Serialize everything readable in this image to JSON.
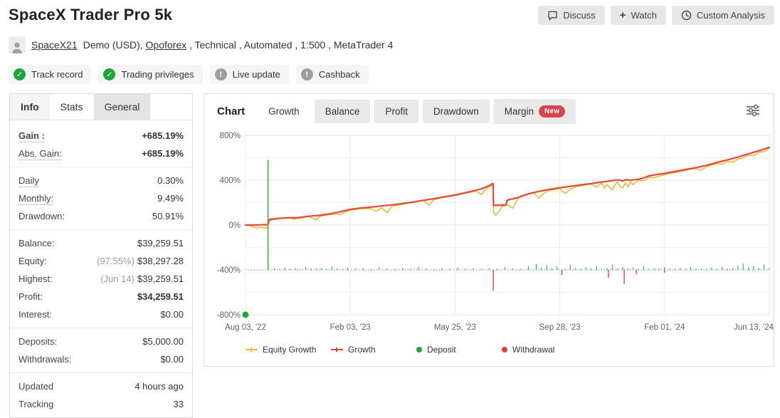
{
  "page": {
    "title": "SpaceX Trader Pro 5k"
  },
  "header_buttons": {
    "discuss": "Discuss",
    "watch": "Watch",
    "custom_analysis": "Custom Analysis"
  },
  "account": {
    "username": "SpaceX21",
    "details_prefix": "Demo (USD), ",
    "broker_link": "Opoforex",
    "details_suffix": " , Technical , Automated , 1:500 , MetaTrader 4"
  },
  "badges": [
    {
      "label": "Track record",
      "status": "verified"
    },
    {
      "label": "Trading privileges",
      "status": "verified"
    },
    {
      "label": "Live update",
      "status": "warning"
    },
    {
      "label": "Cashback",
      "status": "warning"
    }
  ],
  "colors": {
    "verified": "#1fa639",
    "warning": "#9e9e9e",
    "gain_green": "#0fa04c",
    "new_badge_red": "#d9444f"
  },
  "sidebar": {
    "tabs": [
      {
        "label": "Info"
      },
      {
        "label": "Stats"
      },
      {
        "label": "General"
      }
    ],
    "rows": {
      "gain": {
        "label": "Gain :",
        "value": "+685.19%"
      },
      "abs_gain": {
        "label": "Abs. Gain:",
        "value": "+685.19%"
      },
      "daily": {
        "label": "Daily",
        "value": "0.30%"
      },
      "monthly": {
        "label": "Monthly:",
        "value": "9.49%"
      },
      "drawdown": {
        "label": "Drawdown:",
        "value": "50.91%"
      },
      "balance": {
        "label": "Balance:",
        "value": "$39,259.51"
      },
      "equity": {
        "label": "Equity:",
        "note": "(97.55%)",
        "value": "$38,297.28"
      },
      "highest": {
        "label": "Highest:",
        "note": "(Jun 14)",
        "value": "$39,259.51"
      },
      "profit": {
        "label": "Profit:",
        "value": "$34,259.51"
      },
      "interest": {
        "label": "Interest:",
        "value": "$0.00"
      },
      "deposits": {
        "label": "Deposits:",
        "value": "$5,000.00"
      },
      "withdrawals": {
        "label": "Withdrawals:",
        "value": "$0.00"
      },
      "updated": {
        "label": "Updated",
        "value": "4 hours ago"
      },
      "tracking": {
        "label": "Tracking",
        "value": "33"
      }
    }
  },
  "chart_tabs": {
    "section_label": "Chart",
    "tabs": [
      "Growth",
      "Balance",
      "Profit",
      "Drawdown",
      "Margin"
    ],
    "new_badge": "New"
  },
  "chart_data": {
    "type": "line",
    "title": "Growth chart",
    "x_axis": {
      "labels": [
        "Aug 03, '22",
        "Feb 03, '23",
        "May 25, '23",
        "Sep 28, '23",
        "Feb 01, '24",
        "Jun 13, '24"
      ]
    },
    "y_axis": {
      "min": -800,
      "max": 800,
      "tick_step": 400,
      "grid_step": 200,
      "unit": "%"
    },
    "legend": [
      "Equity Growth",
      "Growth",
      "Deposit",
      "Withdrawal"
    ],
    "series": [
      {
        "name": "Equity Growth",
        "color": "#f2b632",
        "width": 1.6,
        "points": [
          [
            0,
            0
          ],
          [
            0.01,
            -8
          ],
          [
            0.02,
            -25
          ],
          [
            0.03,
            -20
          ],
          [
            0.04,
            -28
          ],
          [
            0.046,
            40
          ],
          [
            0.05,
            45
          ],
          [
            0.07,
            60
          ],
          [
            0.085,
            66
          ],
          [
            0.09,
            52
          ],
          [
            0.1,
            58
          ],
          [
            0.11,
            66
          ],
          [
            0.12,
            76
          ],
          [
            0.13,
            58
          ],
          [
            0.135,
            44
          ],
          [
            0.14,
            72
          ],
          [
            0.15,
            86
          ],
          [
            0.17,
            100
          ],
          [
            0.18,
            95
          ],
          [
            0.2,
            132
          ],
          [
            0.22,
            148
          ],
          [
            0.24,
            145
          ],
          [
            0.25,
            124
          ],
          [
            0.26,
            154
          ],
          [
            0.27,
            110
          ],
          [
            0.28,
            168
          ],
          [
            0.3,
            185
          ],
          [
            0.32,
            202
          ],
          [
            0.34,
            218
          ],
          [
            0.35,
            180
          ],
          [
            0.36,
            226
          ],
          [
            0.38,
            248
          ],
          [
            0.4,
            262
          ],
          [
            0.42,
            284
          ],
          [
            0.44,
            302
          ],
          [
            0.45,
            272
          ],
          [
            0.46,
            324
          ],
          [
            0.468,
            348
          ],
          [
            0.472,
            360
          ],
          [
            0.4735,
            120
          ],
          [
            0.478,
            85
          ],
          [
            0.485,
            130
          ],
          [
            0.49,
            165
          ],
          [
            0.5,
            180
          ],
          [
            0.51,
            150
          ],
          [
            0.52,
            238
          ],
          [
            0.54,
            276
          ],
          [
            0.55,
            288
          ],
          [
            0.56,
            240
          ],
          [
            0.57,
            284
          ],
          [
            0.58,
            308
          ],
          [
            0.6,
            324
          ],
          [
            0.61,
            280
          ],
          [
            0.62,
            318
          ],
          [
            0.63,
            340
          ],
          [
            0.65,
            358
          ],
          [
            0.66,
            364
          ],
          [
            0.67,
            338
          ],
          [
            0.68,
            374
          ],
          [
            0.685,
            330
          ],
          [
            0.69,
            360
          ],
          [
            0.7,
            315
          ],
          [
            0.705,
            354
          ],
          [
            0.71,
            384
          ],
          [
            0.715,
            344
          ],
          [
            0.72,
            330
          ],
          [
            0.725,
            374
          ],
          [
            0.73,
            340
          ],
          [
            0.735,
            384
          ],
          [
            0.74,
            360
          ],
          [
            0.75,
            398
          ],
          [
            0.76,
            394
          ],
          [
            0.77,
            428
          ],
          [
            0.78,
            420
          ],
          [
            0.8,
            450
          ],
          [
            0.82,
            468
          ],
          [
            0.83,
            476
          ],
          [
            0.85,
            498
          ],
          [
            0.86,
            504
          ],
          [
            0.87,
            488
          ],
          [
            0.88,
            520
          ],
          [
            0.9,
            548
          ],
          [
            0.91,
            544
          ],
          [
            0.92,
            568
          ],
          [
            0.93,
            560
          ],
          [
            0.94,
            588
          ],
          [
            0.95,
            600
          ],
          [
            0.96,
            624
          ],
          [
            0.97,
            618
          ],
          [
            0.98,
            648
          ],
          [
            0.99,
            655
          ],
          [
            1,
            685
          ]
        ]
      },
      {
        "name": "Growth",
        "color": "#e2493b",
        "width": 2.2,
        "points": [
          [
            0,
            0
          ],
          [
            0.01,
            1
          ],
          [
            0.02,
            0
          ],
          [
            0.03,
            2
          ],
          [
            0.042,
            3
          ],
          [
            0.046,
            50
          ],
          [
            0.06,
            58
          ],
          [
            0.08,
            64
          ],
          [
            0.1,
            66
          ],
          [
            0.12,
            78
          ],
          [
            0.14,
            86
          ],
          [
            0.16,
            98
          ],
          [
            0.18,
            118
          ],
          [
            0.2,
            140
          ],
          [
            0.22,
            152
          ],
          [
            0.24,
            160
          ],
          [
            0.26,
            170
          ],
          [
            0.28,
            180
          ],
          [
            0.3,
            192
          ],
          [
            0.32,
            205
          ],
          [
            0.34,
            220
          ],
          [
            0.36,
            235
          ],
          [
            0.38,
            252
          ],
          [
            0.4,
            268
          ],
          [
            0.42,
            288
          ],
          [
            0.44,
            310
          ],
          [
            0.455,
            330
          ],
          [
            0.465,
            352
          ],
          [
            0.471,
            368
          ],
          [
            0.4725,
            368
          ],
          [
            0.4735,
            175
          ],
          [
            0.49,
            178
          ],
          [
            0.497,
            180
          ],
          [
            0.5,
            222
          ],
          [
            0.52,
            245
          ],
          [
            0.54,
            278
          ],
          [
            0.56,
            300
          ],
          [
            0.58,
            318
          ],
          [
            0.6,
            333
          ],
          [
            0.62,
            345
          ],
          [
            0.64,
            358
          ],
          [
            0.66,
            370
          ],
          [
            0.68,
            383
          ],
          [
            0.7,
            395
          ],
          [
            0.705,
            400
          ],
          [
            0.715,
            402
          ],
          [
            0.72,
            392
          ],
          [
            0.725,
            404
          ],
          [
            0.735,
            400
          ],
          [
            0.745,
            405
          ],
          [
            0.755,
            412
          ],
          [
            0.77,
            438
          ],
          [
            0.785,
            450
          ],
          [
            0.8,
            460
          ],
          [
            0.82,
            478
          ],
          [
            0.84,
            495
          ],
          [
            0.86,
            512
          ],
          [
            0.88,
            532
          ],
          [
            0.9,
            558
          ],
          [
            0.92,
            580
          ],
          [
            0.94,
            606
          ],
          [
            0.96,
            634
          ],
          [
            0.98,
            662
          ],
          [
            1,
            692
          ]
        ]
      }
    ],
    "deposits": {
      "color": "#21a637",
      "baseline": -400,
      "start_marker": [
        0,
        -800
      ],
      "spike": [
        0.043,
        580
      ],
      "ticks": [
        [
          0.055,
          14
        ],
        [
          0.065,
          8
        ],
        [
          0.075,
          22
        ],
        [
          0.085,
          10
        ],
        [
          0.095,
          16
        ],
        [
          0.105,
          7
        ],
        [
          0.115,
          26
        ],
        [
          0.125,
          12
        ],
        [
          0.135,
          9
        ],
        [
          0.145,
          18
        ],
        [
          0.155,
          8
        ],
        [
          0.165,
          30
        ],
        [
          0.175,
          12
        ],
        [
          0.185,
          7
        ],
        [
          0.195,
          20
        ],
        [
          0.21,
          10
        ],
        [
          0.225,
          15
        ],
        [
          0.24,
          8
        ],
        [
          0.255,
          24
        ],
        [
          0.27,
          11
        ],
        [
          0.285,
          8
        ],
        [
          0.3,
          18
        ],
        [
          0.315,
          9
        ],
        [
          0.33,
          26
        ],
        [
          0.345,
          12
        ],
        [
          0.36,
          8
        ],
        [
          0.375,
          16
        ],
        [
          0.39,
          10
        ],
        [
          0.405,
          22
        ],
        [
          0.42,
          9
        ],
        [
          0.435,
          14
        ],
        [
          0.45,
          8
        ],
        [
          0.465,
          18
        ],
        [
          0.48,
          10
        ],
        [
          0.495,
          26
        ],
        [
          0.51,
          12
        ],
        [
          0.525,
          8
        ],
        [
          0.54,
          34
        ],
        [
          0.555,
          52
        ],
        [
          0.565,
          20
        ],
        [
          0.575,
          40
        ],
        [
          0.585,
          14
        ],
        [
          0.595,
          30
        ],
        [
          0.61,
          10
        ],
        [
          0.62,
          46
        ],
        [
          0.63,
          16
        ],
        [
          0.64,
          8
        ],
        [
          0.65,
          24
        ],
        [
          0.66,
          12
        ],
        [
          0.67,
          36
        ],
        [
          0.68,
          10
        ],
        [
          0.69,
          18
        ],
        [
          0.7,
          44
        ],
        [
          0.71,
          12
        ],
        [
          0.72,
          28
        ],
        [
          0.73,
          9
        ],
        [
          0.74,
          20
        ],
        [
          0.75,
          12
        ],
        [
          0.76,
          34
        ],
        [
          0.77,
          10
        ],
        [
          0.78,
          16
        ],
        [
          0.79,
          8
        ],
        [
          0.8,
          24
        ],
        [
          0.81,
          12
        ],
        [
          0.82,
          8
        ],
        [
          0.83,
          18
        ],
        [
          0.84,
          10
        ],
        [
          0.85,
          28
        ],
        [
          0.86,
          9
        ],
        [
          0.87,
          14
        ],
        [
          0.88,
          8
        ],
        [
          0.89,
          22
        ],
        [
          0.9,
          12
        ],
        [
          0.91,
          30
        ],
        [
          0.92,
          10
        ],
        [
          0.93,
          16
        ],
        [
          0.94,
          40
        ],
        [
          0.95,
          56
        ],
        [
          0.96,
          22
        ],
        [
          0.97,
          36
        ],
        [
          0.98,
          14
        ],
        [
          0.99,
          48
        ],
        [
          1,
          20
        ]
      ]
    },
    "withdrawals": {
      "color": "#e03c31",
      "baseline": -400,
      "ticks": [
        [
          0.473,
          -585
        ],
        [
          0.604,
          -445
        ],
        [
          0.693,
          -470
        ],
        [
          0.723,
          -525
        ],
        [
          0.746,
          -440
        ],
        [
          0.8,
          -425
        ]
      ]
    }
  }
}
